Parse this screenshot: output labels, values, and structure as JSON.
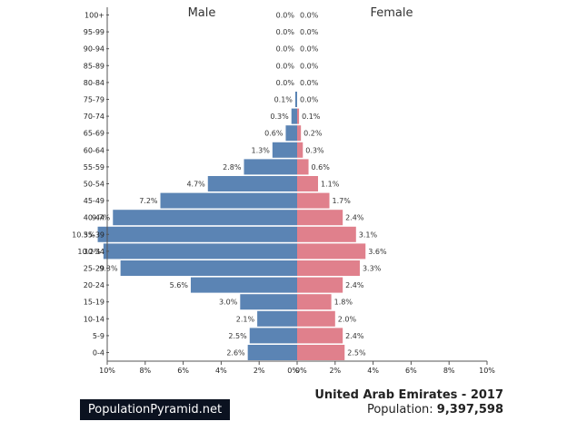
{
  "chart_data": {
    "type": "bar",
    "orientation": "horizontal-pyramid",
    "categories": [
      "100+",
      "95-99",
      "90-94",
      "85-89",
      "80-84",
      "75-79",
      "70-74",
      "65-69",
      "60-64",
      "55-59",
      "50-54",
      "45-49",
      "40-44",
      "35-39",
      "30-34",
      "25-29",
      "20-24",
      "15-19",
      "10-14",
      "5-9",
      "0-4"
    ],
    "series": [
      {
        "name": "Male",
        "color": "#5b84b4",
        "values": [
          0.0,
          0.0,
          0.0,
          0.0,
          0.0,
          0.1,
          0.3,
          0.6,
          1.3,
          2.8,
          4.7,
          7.2,
          9.7,
          10.5,
          10.2,
          9.3,
          5.6,
          3.0,
          2.1,
          2.5,
          2.6
        ],
        "labels": [
          "0.0%",
          "0.0%",
          "0.0%",
          "0.0%",
          "0.0%",
          "0.1%",
          "0.3%",
          "0.6%",
          "1.3%",
          "2.8%",
          "4.7%",
          "7.2%",
          "9.7%",
          "10.5%",
          "10.2%",
          "9.3%",
          "5.6%",
          "3.0%",
          "2.1%",
          "2.5%",
          "2.6%"
        ]
      },
      {
        "name": "Female",
        "color": "#e0808c",
        "values": [
          0.0,
          0.0,
          0.0,
          0.0,
          0.0,
          0.0,
          0.1,
          0.2,
          0.3,
          0.6,
          1.1,
          1.7,
          2.4,
          3.1,
          3.6,
          3.3,
          2.4,
          1.8,
          2.0,
          2.4,
          2.5
        ],
        "labels": [
          "0.0%",
          "0.0%",
          "0.0%",
          "0.0%",
          "0.0%",
          "0.0%",
          "0.1%",
          "0.2%",
          "0.3%",
          "0.6%",
          "1.1%",
          "1.7%",
          "2.4%",
          "3.1%",
          "3.6%",
          "3.3%",
          "2.4%",
          "1.8%",
          "2.0%",
          "2.4%",
          "2.5%"
        ]
      }
    ],
    "xlim": [
      0,
      10
    ],
    "x_ticks": [
      "10%",
      "8%",
      "6%",
      "4%",
      "2%",
      "0%",
      "0%",
      "2%",
      "4%",
      "6%",
      "8%",
      "10%"
    ],
    "title": "",
    "xlabel": "",
    "ylabel": "",
    "legend": "none"
  },
  "branding": {
    "site": "PopulationPyramid.net"
  },
  "caption": {
    "country": "United Arab Emirates - 2017",
    "population_label": "Population: ",
    "population_value": "9,397,598"
  }
}
